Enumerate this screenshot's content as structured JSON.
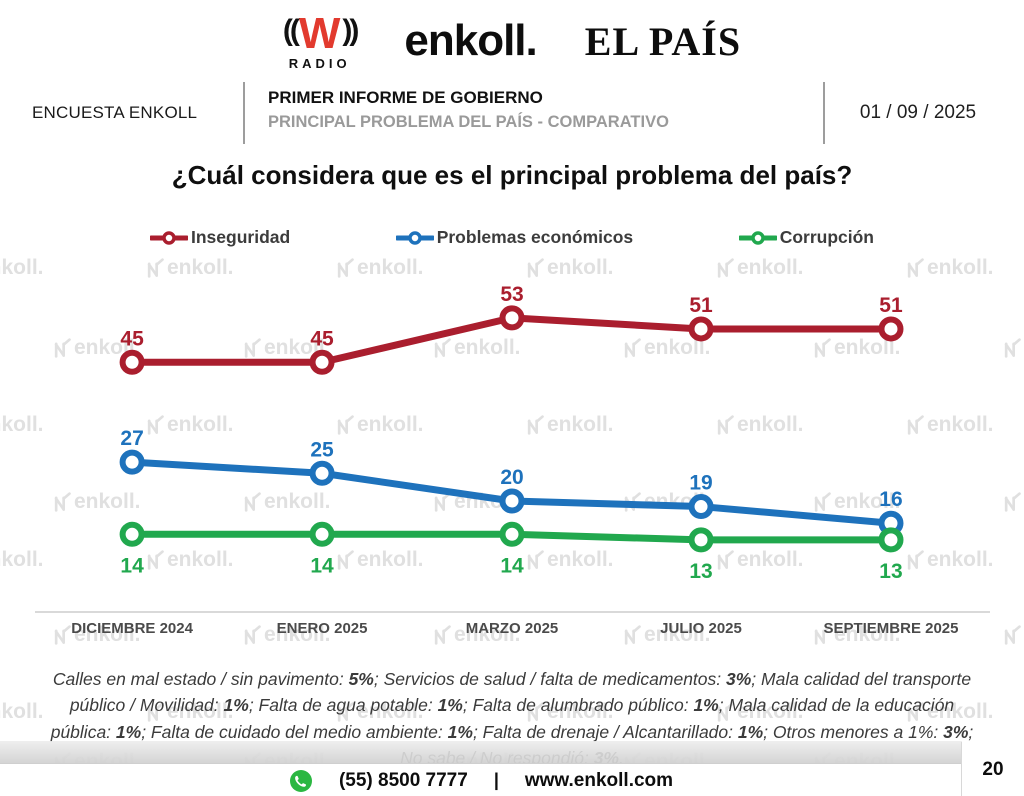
{
  "header": {
    "logos": {
      "wradio_w": "W",
      "wradio_radio": "RADIO",
      "enkoll": "enkoll.",
      "elpais": "EL PAÍS"
    },
    "left_label": "ENCUESTA ENKOLL",
    "center_title": "PRIMER INFORME DE GOBIERNO",
    "center_subtitle": "PRINCIPAL PROBLEMA DEL PAÍS - COMPARATIVO",
    "date": "01 / 09 / 2025"
  },
  "question_title": "¿Cuál considera que es el principal problema del país?",
  "chart_data": {
    "type": "line",
    "title": "¿Cuál considera que es el principal problema del país?",
    "categories": [
      "DICIEMBRE 2024",
      "ENERO 2025",
      "MARZO 2025",
      "JULIO 2025",
      "SEPTIEMBRE 2025"
    ],
    "series": [
      {
        "name": "Inseguridad",
        "color": "#AA1E2E",
        "values": [
          45,
          45,
          53,
          51,
          51
        ],
        "label_position": "above"
      },
      {
        "name": "Problemas económicos",
        "color": "#1E72BC",
        "values": [
          27,
          25,
          20,
          19,
          16
        ],
        "label_position": "above"
      },
      {
        "name": "Corrupción",
        "color": "#21A84E",
        "values": [
          14,
          14,
          14,
          13,
          13
        ],
        "label_position": "below"
      }
    ],
    "ylim": [
      0,
      66
    ],
    "grid": false,
    "legend_position": "top",
    "data_labels": true
  },
  "watermark": {
    "text": "enkoll."
  },
  "footnote_segments": [
    {
      "text": "Calles en mal estado / sin pavimento: ",
      "bold": false
    },
    {
      "text": "5%",
      "bold": true
    },
    {
      "text": "; Servicios de salud / falta de medicamentos: ",
      "bold": false
    },
    {
      "text": "3%",
      "bold": true
    },
    {
      "text": "; Mala calidad del transporte público / Movilidad: ",
      "bold": false
    },
    {
      "text": "1%",
      "bold": true
    },
    {
      "text": "; Falta de agua potable: ",
      "bold": false
    },
    {
      "text": "1%",
      "bold": true
    },
    {
      "text": "; Falta de alumbrado público: ",
      "bold": false
    },
    {
      "text": "1%",
      "bold": true
    },
    {
      "text": "; Mala calidad de la educación pública: ",
      "bold": false
    },
    {
      "text": "1%",
      "bold": true
    },
    {
      "text": "; Falta de cuidado del medio ambiente: ",
      "bold": false
    },
    {
      "text": "1%",
      "bold": true
    },
    {
      "text": "; Falta de drenaje / Alcantarillado: ",
      "bold": false
    },
    {
      "text": "1%",
      "bold": true
    },
    {
      "text": "; Otros menores a 1%: ",
      "bold": false
    },
    {
      "text": "3%",
      "bold": true
    },
    {
      "text": "; No sabe / No respondió: ",
      "bold": false
    },
    {
      "text": "3%",
      "bold": true
    },
    {
      "text": ".",
      "bold": false
    }
  ],
  "footer": {
    "phone": "(55) 8500 7777",
    "separator": "|",
    "website": "www.enkoll.com",
    "page": "20",
    "whatsapp_green": "#2BB741"
  }
}
